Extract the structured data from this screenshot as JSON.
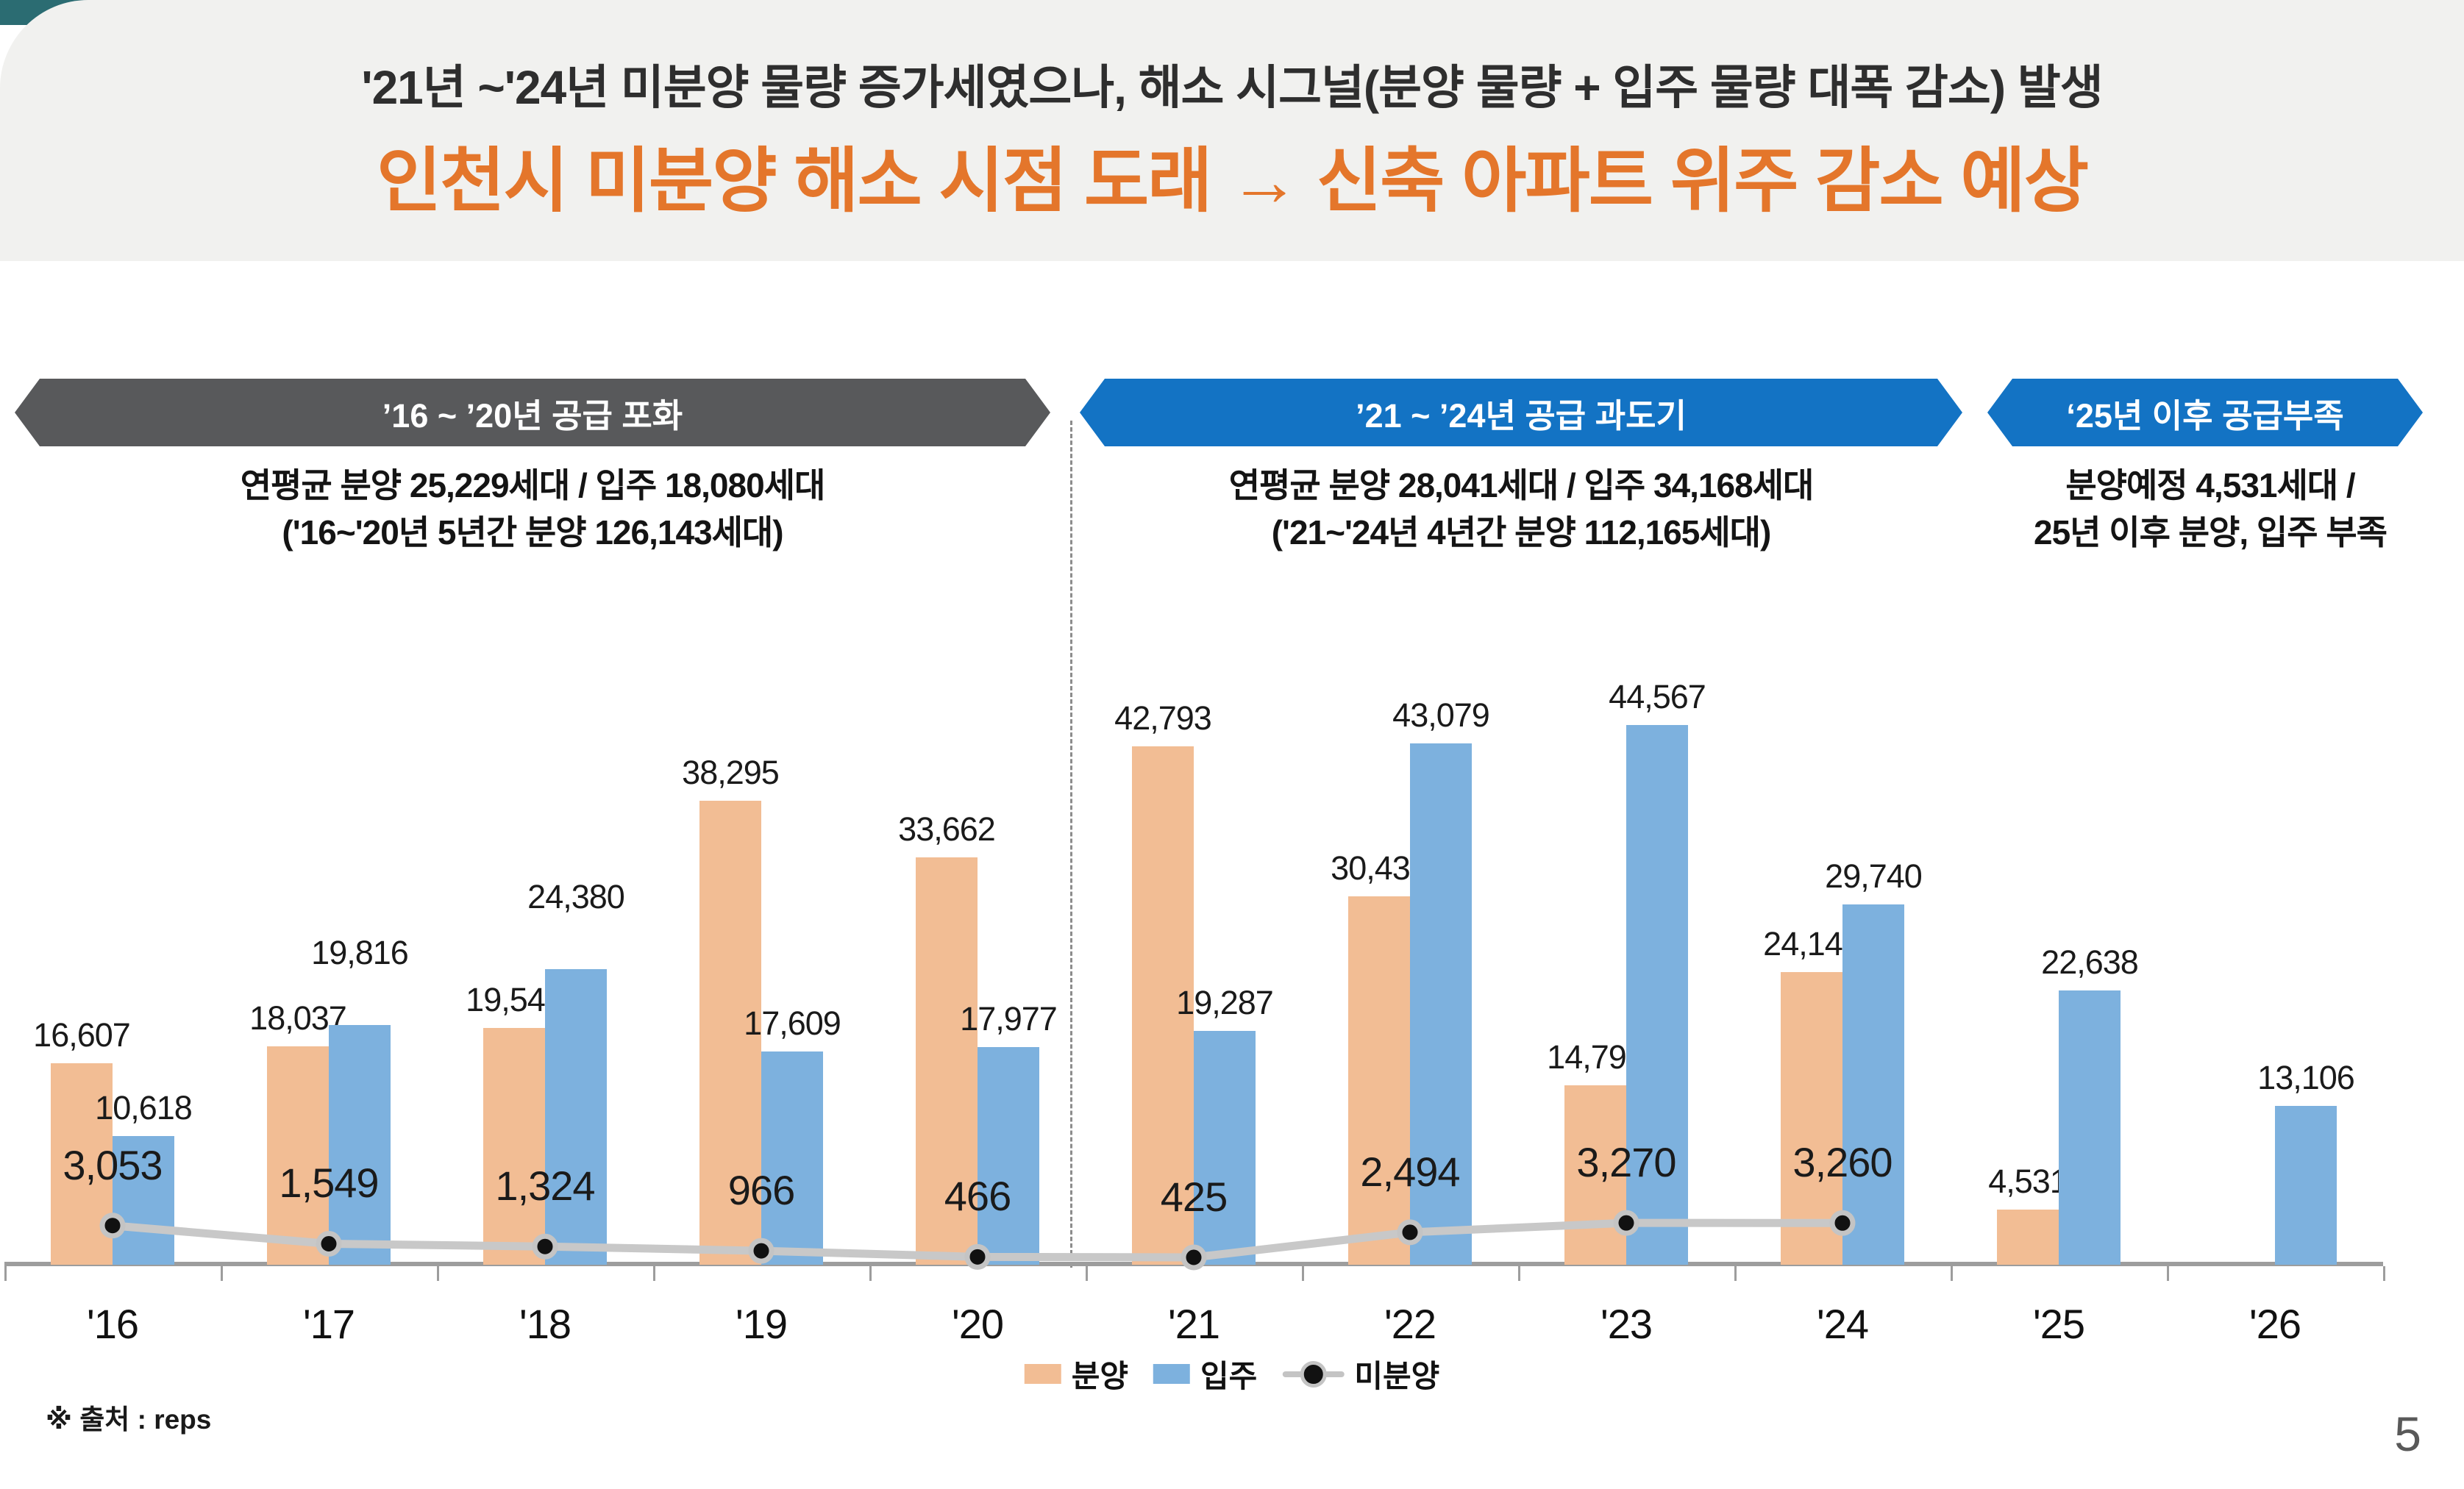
{
  "page": {
    "number": "5",
    "source_note": "※ 출처 : reps",
    "header_background": "#F1F1EF",
    "corner_accent_color": "#2B6C72",
    "title_accent_color": "#E4762B"
  },
  "title": {
    "line1": "'21년 ~'24년 미분양 물량 증가세였으나, 해소 시그널(분양 물량 + 입주 물량 대폭 감소) 발생",
    "line2": "인천시 미분양 해소 시점 도래 → 신축 아파트 위주 감소 예상"
  },
  "banners": [
    {
      "label": "’16 ~ ’20년 공급 포화",
      "color": "#58595B",
      "subtitle_line1": "연평균 분양 25,229세대 / 입주 18,080세대",
      "subtitle_line2": "('16~'20년 5년간 분양 126,143세대)"
    },
    {
      "label": "’21 ~ ’24년 공급 과도기",
      "color": "#1373C4",
      "subtitle_line1": "연평균 분양 28,041세대 / 입주 34,168세대",
      "subtitle_line2": "('21~'24년 4년간 분양 112,165세대)"
    },
    {
      "label": "‘25년 이후 공급부족",
      "color": "#1373C4",
      "subtitle_line1": "분양예정 4,531세대 /",
      "subtitle_line2": "25년 이후 분양, 입주 부족"
    }
  ],
  "chart_data": {
    "type": "bar",
    "categories": [
      "'16",
      "'17",
      "'18",
      "'19",
      "'20",
      "'21",
      "'22",
      "'23",
      "'24",
      "'25",
      "'26"
    ],
    "series": [
      {
        "name": "분양",
        "type": "bar",
        "color": "#F2BD94",
        "values": [
          16607,
          18037,
          19542,
          38295,
          33662,
          42793,
          30430,
          14793,
          24149,
          4531,
          null
        ]
      },
      {
        "name": "입주",
        "type": "bar",
        "color": "#7DB1DE",
        "values": [
          10618,
          19816,
          24380,
          17609,
          17977,
          19287,
          43079,
          44567,
          29740,
          22638,
          13106
        ]
      },
      {
        "name": "미분양",
        "type": "line",
        "color": "#C8C8C8",
        "marker_color": "#111111",
        "values": [
          3053,
          1549,
          1324,
          966,
          466,
          425,
          2494,
          3270,
          3260,
          null,
          null
        ]
      }
    ],
    "ylim": [
      0,
      45000
    ],
    "grid": false,
    "legend_position": "bottom",
    "axis_color": "#9D9D9D"
  }
}
